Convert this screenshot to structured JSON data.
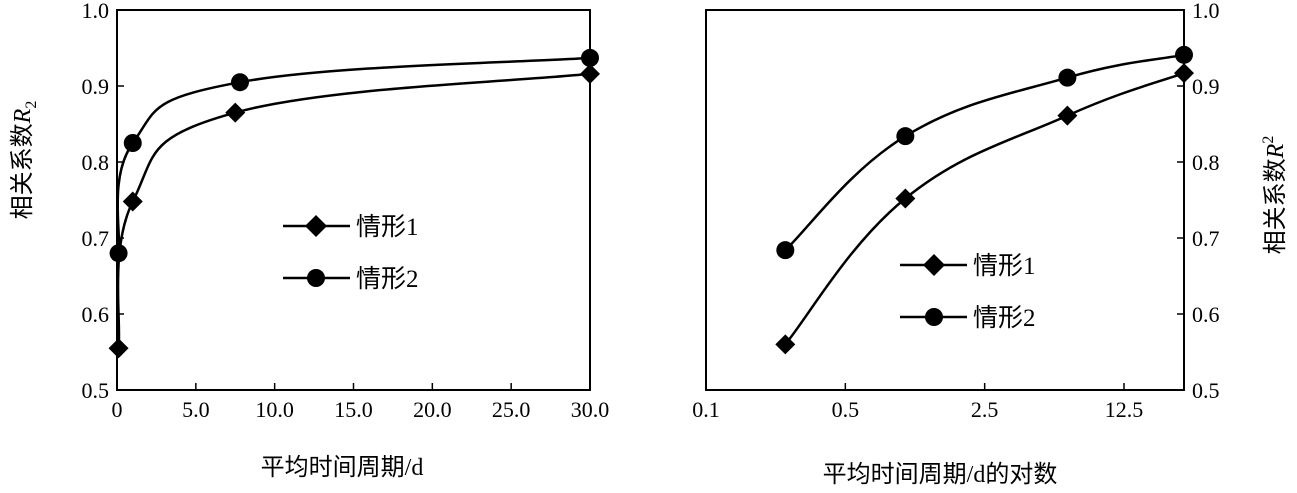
{
  "chart_data": [
    {
      "type": "line",
      "xlabel": "平均时间周期/d",
      "ylabel_main": "相关系数",
      "ylabel_symbol": "R",
      "ylabel_subscript": "2",
      "xlim": [
        0,
        30
      ],
      "ylim": [
        0.5,
        1.0
      ],
      "xticks": [
        0,
        5,
        10,
        15,
        20,
        25,
        30
      ],
      "xtick_labels": [
        "0",
        "5.0",
        "10.0",
        "15.0",
        "20.0",
        "25.0",
        "30.0"
      ],
      "yticks": [
        0.5,
        0.6,
        0.7,
        0.8,
        0.9,
        1.0
      ],
      "ytick_labels": [
        "0.5",
        "0.6",
        "0.7",
        "0.8",
        "0.9",
        "1.0"
      ],
      "grid": false,
      "legend": "center",
      "series": [
        {
          "name": "情形1",
          "marker": "diamond",
          "x": [
            0.1,
            1,
            7.5,
            30
          ],
          "y": [
            0.555,
            0.748,
            0.865,
            0.916
          ]
        },
        {
          "name": "情形2",
          "marker": "circle",
          "x": [
            0.1,
            1,
            7.8,
            30
          ],
          "y": [
            0.68,
            0.825,
            0.905,
            0.937
          ]
        }
      ]
    },
    {
      "type": "line",
      "xlabel": "平均时间周期/d的对数",
      "ylabel_main": "相关系数",
      "ylabel_symbol": "R",
      "ylabel_superscript": "2",
      "xscale": "log",
      "xlim": [
        0.1,
        25
      ],
      "ylim": [
        0.5,
        1.0
      ],
      "xticks": [
        0.1,
        0.5,
        2.5,
        12.5
      ],
      "xtick_labels": [
        "0.1",
        "0.5",
        "2.5",
        "12.5"
      ],
      "yticks": [
        0.5,
        0.6,
        0.7,
        0.8,
        0.9,
        1.0
      ],
      "ytick_labels": [
        "0.5",
        "0.6",
        "0.7",
        "0.8",
        "0.9",
        "1.0"
      ],
      "yaxis_position": "right",
      "grid": false,
      "legend": "center-right",
      "series": [
        {
          "name": "情形1",
          "marker": "diamond",
          "x": [
            0.25,
            1.0,
            6.5,
            25
          ],
          "y": [
            0.56,
            0.752,
            0.861,
            0.917
          ]
        },
        {
          "name": "情形2",
          "marker": "circle",
          "x": [
            0.25,
            1.0,
            6.5,
            25
          ],
          "y": [
            0.684,
            0.834,
            0.911,
            0.941
          ]
        }
      ]
    }
  ]
}
